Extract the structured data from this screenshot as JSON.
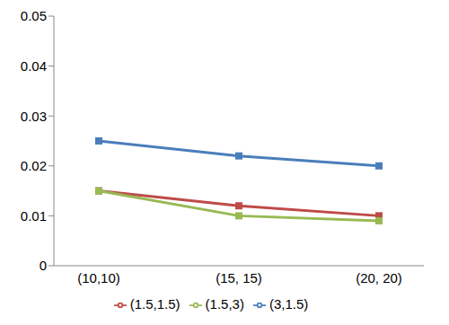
{
  "chart_data": {
    "type": "line",
    "categories": [
      "(10,10)",
      "(15, 15)",
      "(20, 20)"
    ],
    "series": [
      {
        "name": "(3,1.5)",
        "color": "#4a7ebb",
        "values": [
          0.025,
          0.022,
          0.02
        ]
      },
      {
        "name": "(1.5,1.5)",
        "color": "#be4b48",
        "values": [
          0.015,
          0.012,
          0.01
        ]
      },
      {
        "name": "(1.5,3)",
        "color": "#98b954",
        "values": [
          0.015,
          0.01,
          0.009
        ]
      }
    ],
    "ylim": [
      0,
      0.05
    ],
    "yticks": [
      0,
      0.01,
      0.02,
      0.03,
      0.04,
      0.05
    ],
    "grid": false,
    "legend": "bottom",
    "marker": "square"
  }
}
